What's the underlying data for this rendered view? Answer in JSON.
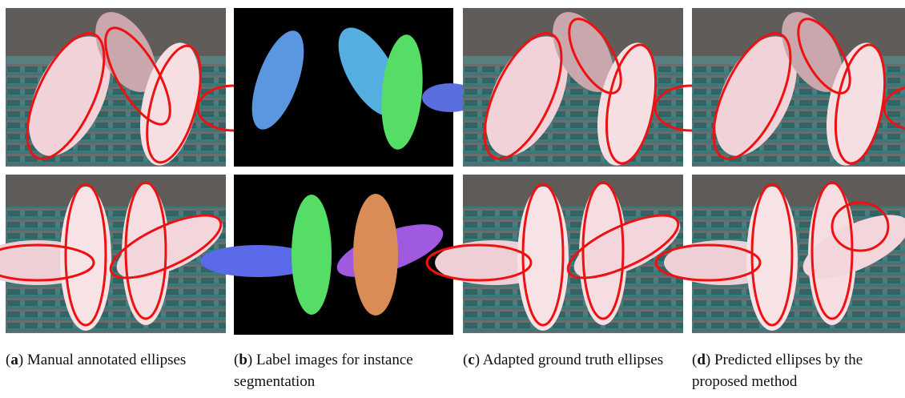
{
  "figure": {
    "panels": [
      {
        "label": "a",
        "caption": "Manual annotated ellipses"
      },
      {
        "label": "b",
        "caption": "Label images for instance segmentation"
      },
      {
        "label": "c",
        "caption": "Adapted ground truth ellipses"
      },
      {
        "label": "d",
        "caption": "Predicted ellipses by the proposed method"
      }
    ]
  }
}
